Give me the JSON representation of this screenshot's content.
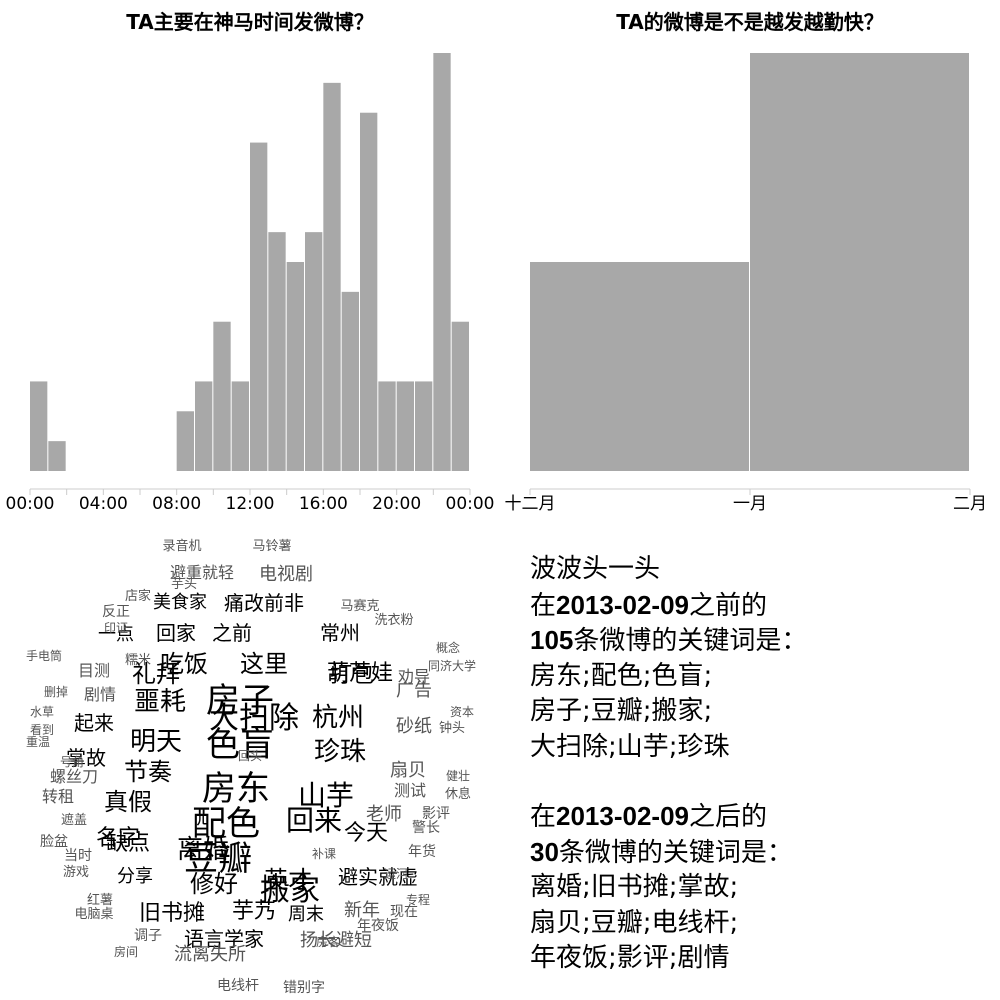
{
  "chart_data": [
    {
      "type": "bar",
      "title": "TA主要在神马时间发微博？",
      "x_ticks": [
        "00:00",
        "04:00",
        "08:00",
        "12:00",
        "16:00",
        "20:00",
        "00:00"
      ],
      "categories": [
        "0",
        "1",
        "2",
        "3",
        "4",
        "5",
        "6",
        "7",
        "8",
        "9",
        "10",
        "11",
        "12",
        "13",
        "14",
        "15",
        "16",
        "17",
        "18",
        "19",
        "20",
        "21",
        "22",
        "23"
      ],
      "values": [
        3,
        1,
        0,
        0,
        0,
        0,
        0,
        0,
        2,
        3,
        5,
        3,
        11,
        8,
        7,
        8,
        13,
        6,
        12,
        3,
        3,
        3,
        14,
        5
      ],
      "ylim": [
        0,
        14
      ]
    },
    {
      "type": "bar",
      "title": "TA的微博是不是越发越勤快？",
      "x_ticks": [
        "十二月",
        "一月",
        "二月"
      ],
      "categories": [
        "十二月",
        "一月"
      ],
      "values": [
        7,
        14
      ],
      "ylim": [
        0,
        14
      ]
    }
  ],
  "summary": {
    "name": "波波头一头",
    "before_pre": "在",
    "date": "2013-02-09",
    "before_post": "之前的",
    "before_count": "105",
    "count_suffix": "条微博的关键词是：",
    "before_keywords": [
      "房东;配色;色盲;",
      "房子;豆瓣;搬家;",
      "大扫除;山芋;珍珠"
    ],
    "after_pre": "在",
    "after_post": "之后的",
    "after_count": "30",
    "after_keywords": [
      "离婚;旧书摊;掌故;",
      "扇贝;豆瓣;电线杆;",
      "年夜饭;影评;剧情"
    ]
  },
  "word_cloud": [
    {
      "text": "房子",
      "size": 34,
      "color": "#000000",
      "vertical": false
    },
    {
      "text": "色盲",
      "size": 34,
      "color": "#000000",
      "vertical": false
    },
    {
      "text": "房东",
      "size": 34,
      "color": "#000000",
      "vertical": false
    },
    {
      "text": "配色",
      "size": 34,
      "color": "#000000",
      "vertical": false
    },
    {
      "text": "豆瓣",
      "size": 34,
      "color": "#000000",
      "vertical": false
    },
    {
      "text": "搬家",
      "size": 30,
      "color": "#000000",
      "vertical": false
    },
    {
      "text": "大扫除",
      "size": 30,
      "color": "#000000",
      "vertical": false
    },
    {
      "text": "山芋",
      "size": 28,
      "color": "#000000",
      "vertical": false
    },
    {
      "text": "珍珠",
      "size": 26,
      "color": "#000000",
      "vertical": false
    },
    {
      "text": "回来",
      "size": 28,
      "color": "#000000",
      "vertical": false
    },
    {
      "text": "明天",
      "size": 26,
      "color": "#000000",
      "vertical": false
    },
    {
      "text": "噩耗",
      "size": 26,
      "color": "#000000",
      "vertical": false
    },
    {
      "text": "杭州",
      "size": 26,
      "color": "#000000",
      "vertical": false
    },
    {
      "text": "离婚",
      "size": 26,
      "color": "#000000",
      "vertical": false
    },
    {
      "text": "修好",
      "size": 24,
      "color": "#000000",
      "vertical": false
    },
    {
      "text": "英才",
      "size": 24,
      "color": "#000000",
      "vertical": false
    },
    {
      "text": "吃饭",
      "size": 24,
      "color": "#000000",
      "vertical": false
    },
    {
      "text": "这里",
      "size": 24,
      "color": "#000000",
      "vertical": false
    },
    {
      "text": "礼拜",
      "size": 24,
      "color": "#000000",
      "vertical": false
    },
    {
      "text": "打包",
      "size": 22,
      "color": "#000000",
      "vertical": false
    },
    {
      "text": "真假",
      "size": 24,
      "color": "#000000",
      "vertical": false
    },
    {
      "text": "节奏",
      "size": 24,
      "color": "#000000",
      "vertical": false
    },
    {
      "text": "名字",
      "size": 22,
      "color": "#000000",
      "vertical": false
    },
    {
      "text": "今天",
      "size": 22,
      "color": "#000000",
      "vertical": false
    },
    {
      "text": "旧书摊",
      "size": 22,
      "color": "#000000",
      "vertical": false
    },
    {
      "text": "芋艿",
      "size": 22,
      "color": "#000000",
      "vertical": false
    },
    {
      "text": "葫芦娃",
      "size": 22,
      "color": "#000000",
      "vertical": false
    },
    {
      "text": "回家",
      "size": 20,
      "color": "#000000",
      "vertical": false
    },
    {
      "text": "之前",
      "size": 20,
      "color": "#000000",
      "vertical": false
    },
    {
      "text": "痛改前非",
      "size": 20,
      "color": "#000000",
      "vertical": false
    },
    {
      "text": "常州",
      "size": 20,
      "color": "#000000",
      "vertical": false
    },
    {
      "text": "美食家",
      "size": 18,
      "color": "#000000",
      "vertical": false
    },
    {
      "text": "一点",
      "size": 18,
      "color": "#000000",
      "vertical": false
    },
    {
      "text": "起来",
      "size": 20,
      "color": "#000000",
      "vertical": false
    },
    {
      "text": "掌故",
      "size": 20,
      "color": "#000000",
      "vertical": false
    },
    {
      "text": "缺点",
      "size": 22,
      "color": "#000000",
      "vertical": false
    },
    {
      "text": "分享",
      "size": 18,
      "color": "#000000",
      "vertical": false
    },
    {
      "text": "语言学家",
      "size": 20,
      "color": "#000000",
      "vertical": false
    },
    {
      "text": "周末",
      "size": 18,
      "color": "#000000",
      "vertical": false
    },
    {
      "text": "避实就虚",
      "size": 20,
      "color": "#000000",
      "vertical": false
    },
    {
      "text": "新年",
      "size": 18,
      "color": "#555555",
      "vertical": false
    },
    {
      "text": "扬长避短",
      "size": 18,
      "color": "#555555",
      "vertical": false
    },
    {
      "text": "流离失所",
      "size": 18,
      "color": "#555555",
      "vertical": false
    },
    {
      "text": "错别字",
      "size": 14,
      "color": "#555555",
      "vertical": false
    },
    {
      "text": "电线杆",
      "size": 14,
      "color": "#555555",
      "vertical": false
    },
    {
      "text": "电视剧",
      "size": 18,
      "color": "#555555",
      "vertical": false
    },
    {
      "text": "避重就轻",
      "size": 16,
      "color": "#555555",
      "vertical": false
    },
    {
      "text": "目测",
      "size": 16,
      "color": "#555555",
      "vertical": false
    },
    {
      "text": "剧情",
      "size": 16,
      "color": "#555555",
      "vertical": false
    },
    {
      "text": "螺丝刀",
      "size": 16,
      "color": "#555555",
      "vertical": false
    },
    {
      "text": "转租",
      "size": 16,
      "color": "#555555",
      "vertical": false
    },
    {
      "text": "扇贝",
      "size": 18,
      "color": "#555555",
      "vertical": false
    },
    {
      "text": "老师",
      "size": 18,
      "color": "#555555",
      "vertical": false
    },
    {
      "text": "砂纸",
      "size": 18,
      "color": "#555555",
      "vertical": false
    },
    {
      "text": "广告",
      "size": 18,
      "color": "#555555",
      "vertical": false
    },
    {
      "text": "劝导",
      "size": 16,
      "color": "#555555",
      "vertical": false
    },
    {
      "text": "测试",
      "size": 16,
      "color": "#555555",
      "vertical": false
    },
    {
      "text": "影评",
      "size": 14,
      "color": "#555555",
      "vertical": false
    },
    {
      "text": "年货",
      "size": 14,
      "color": "#555555",
      "vertical": false
    },
    {
      "text": "警长",
      "size": 14,
      "color": "#555555",
      "vertical": false
    },
    {
      "text": "现在",
      "size": 14,
      "color": "#555555",
      "vertical": false
    },
    {
      "text": "年夜饭",
      "size": 14,
      "color": "#555555",
      "vertical": false
    },
    {
      "text": "调子",
      "size": 14,
      "color": "#555555",
      "vertical": false
    },
    {
      "text": "录音机",
      "size": 13,
      "color": "#555555",
      "vertical": false
    },
    {
      "text": "马铃薯",
      "size": 13,
      "color": "#555555",
      "vertical": false
    },
    {
      "text": "芋头",
      "size": 13,
      "color": "#555555",
      "vertical": false
    },
    {
      "text": "店家",
      "size": 13,
      "color": "#555555",
      "vertical": false
    },
    {
      "text": "马赛克",
      "size": 13,
      "color": "#555555",
      "vertical": false
    },
    {
      "text": "洗衣粉",
      "size": 13,
      "color": "#555555",
      "vertical": false
    },
    {
      "text": "反正",
      "size": 14,
      "color": "#555555",
      "vertical": false
    },
    {
      "text": "印证",
      "size": 12,
      "color": "#555555",
      "vertical": false
    },
    {
      "text": "概念",
      "size": 12,
      "color": "#555555",
      "vertical": false
    },
    {
      "text": "同济大学",
      "size": 12,
      "color": "#555555",
      "vertical": false
    },
    {
      "text": "手电筒",
      "size": 12,
      "color": "#555555",
      "vertical": false
    },
    {
      "text": "糯米",
      "size": 13,
      "color": "#555555",
      "vertical": false
    },
    {
      "text": "删掉",
      "size": 12,
      "color": "#555555",
      "vertical": false
    },
    {
      "text": "水草",
      "size": 12,
      "color": "#555555",
      "vertical": false
    },
    {
      "text": "看到",
      "size": 12,
      "color": "#555555",
      "vertical": false
    },
    {
      "text": "重温",
      "size": 12,
      "color": "#555555",
      "vertical": false
    },
    {
      "text": "号角",
      "size": 12,
      "color": "#555555",
      "vertical": false
    },
    {
      "text": "资本",
      "size": 12,
      "color": "#555555",
      "vertical": false
    },
    {
      "text": "钟头",
      "size": 13,
      "color": "#555555",
      "vertical": false
    },
    {
      "text": "健壮",
      "size": 12,
      "color": "#555555",
      "vertical": false
    },
    {
      "text": "休息",
      "size": 13,
      "color": "#555555",
      "vertical": false
    },
    {
      "text": "遮盖",
      "size": 13,
      "color": "#555555",
      "vertical": false
    },
    {
      "text": "脸盆",
      "size": 14,
      "color": "#555555",
      "vertical": false
    },
    {
      "text": "当时",
      "size": 14,
      "color": "#555555",
      "vertical": false
    },
    {
      "text": "游戏",
      "size": 13,
      "color": "#555555",
      "vertical": false
    },
    {
      "text": "红薯",
      "size": 13,
      "color": "#555555",
      "vertical": false
    },
    {
      "text": "电脑桌",
      "size": 13,
      "color": "#555555",
      "vertical": false
    },
    {
      "text": "房间",
      "size": 12,
      "color": "#555555",
      "vertical": false
    },
    {
      "text": "专程",
      "size": 12,
      "color": "#555555",
      "vertical": false
    },
    {
      "text": "房客",
      "size": 12,
      "color": "#555555",
      "vertical": false
    },
    {
      "text": "运河",
      "size": 12,
      "color": "#555555",
      "vertical": false
    },
    {
      "text": "补课",
      "size": 12,
      "color": "#555555",
      "vertical": false
    },
    {
      "text": "回头",
      "size": 12,
      "color": "#555555",
      "vertical": false
    }
  ]
}
